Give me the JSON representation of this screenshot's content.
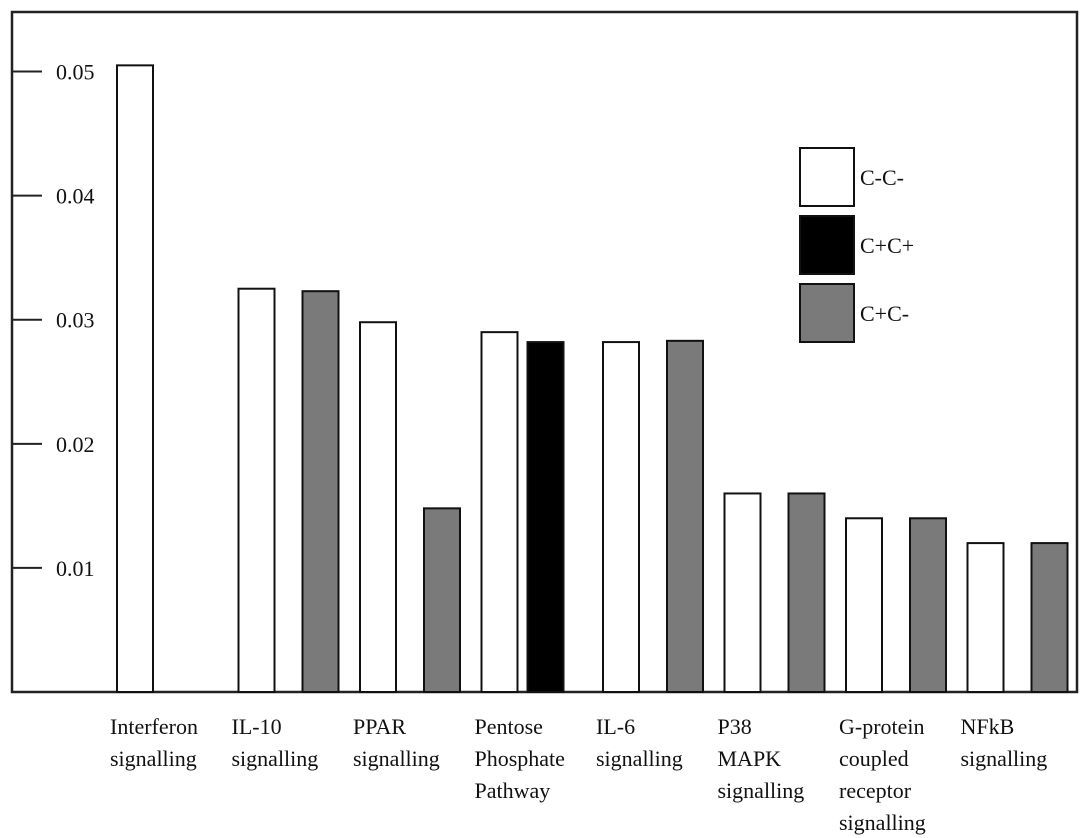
{
  "chart_data": {
    "type": "bar",
    "title": "",
    "xlabel": "",
    "ylabel": "",
    "ylim": [
      0.0,
      0.0548
    ],
    "yticks": [
      0.01,
      0.02,
      0.03,
      0.04,
      0.05
    ],
    "ytick_labels": [
      "0.01",
      "0.02",
      "0.03",
      "0.04",
      "0.05"
    ],
    "grid": false,
    "legend_position": "top-right",
    "categories": [
      [
        "Interferon",
        "signalling"
      ],
      [
        "IL-10",
        "signalling"
      ],
      [
        "PPAR",
        "signalling"
      ],
      [
        "Pentose",
        "Phosphate",
        "Pathway"
      ],
      [
        "IL-6",
        "signalling"
      ],
      [
        "P38",
        "MAPK",
        "signalling"
      ],
      [
        "G-protein",
        "coupled",
        "receptor",
        "signalling"
      ],
      [
        "NFkB",
        "signalling"
      ]
    ],
    "series": [
      {
        "name": "C-C-",
        "color": "#ffffff",
        "values": [
          0.0505,
          0.0325,
          0.0298,
          0.029,
          0.0282,
          0.016,
          0.014,
          0.012
        ]
      },
      {
        "name": "C+C+",
        "color": "#000000",
        "values": [
          null,
          null,
          null,
          0.0282,
          null,
          null,
          null,
          null
        ]
      },
      {
        "name": "C+C-",
        "color": "#7a7a7a",
        "values": [
          null,
          0.0323,
          0.0148,
          null,
          0.0283,
          0.016,
          0.014,
          0.012
        ]
      }
    ]
  }
}
